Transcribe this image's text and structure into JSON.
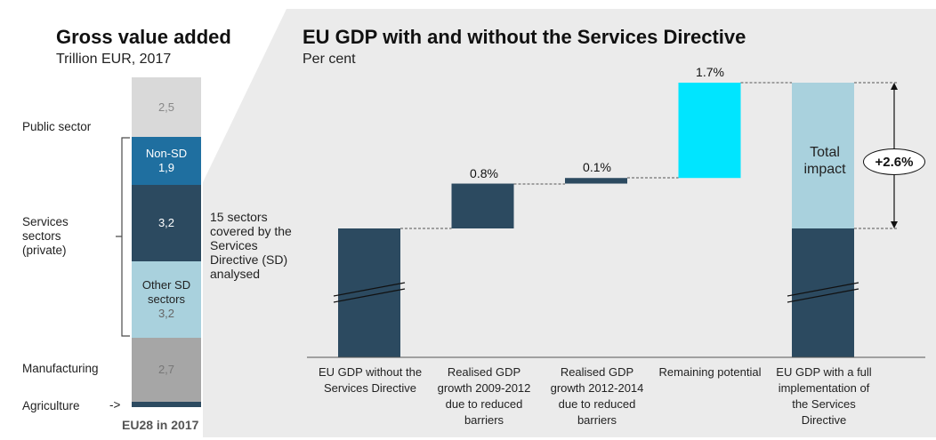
{
  "left_panel": {
    "title": "Gross value added",
    "subtitle": "Trillion EUR, 2017",
    "footer": "EU28 in 2017",
    "labels": {
      "public": "Public sector",
      "services": "Services sectors (private)",
      "manufacturing": "Manufacturing",
      "agriculture": "Agriculture",
      "agriculture_arrow": "->"
    },
    "bracket_note": "15 sectors covered by the Services Directive (SD) analysed",
    "colors": {
      "public": "#d9d9d9",
      "non_sd": "#1f6fa0",
      "sd_covered": "#2c4a60",
      "other_sd": "#a9d1dd",
      "manufacturing": "#a6a6a6",
      "agriculture": "#2c4a60",
      "bracket": "#4a4a4a"
    }
  },
  "right_panel": {
    "title": "EU GDP with and without the Services Directive",
    "subtitle": "Per cent",
    "impact_label": "Total impact",
    "impact_badge": "+2.6%",
    "colors": {
      "panel_bg": "#ebebeb",
      "dark": "#2c4a60",
      "cyan": "#00e5ff",
      "light_blue": "#a9d1dd"
    }
  },
  "chart_data": [
    {
      "type": "bar",
      "stacked": true,
      "title": "Gross value added",
      "subtitle": "Trillion EUR, 2017",
      "categories": [
        "EU28 in 2017"
      ],
      "series": [
        {
          "name": "Agriculture",
          "value_label": "",
          "values": [
            0.1
          ]
        },
        {
          "name": "Manufacturing",
          "value_label": "2,7",
          "values": [
            2.7
          ]
        },
        {
          "name": "Other SD sectors",
          "value_label": "3,2",
          "values": [
            3.2
          ]
        },
        {
          "name": "",
          "value_label": "3,2",
          "values": [
            3.2
          ]
        },
        {
          "name": "Non-SD",
          "value_label": "1,9",
          "values": [
            1.9
          ]
        },
        {
          "name": "Public sector",
          "value_label": "2,5",
          "values": [
            2.5
          ]
        }
      ]
    },
    {
      "type": "bar",
      "waterfall": true,
      "title": "EU GDP with and without the Services Directive",
      "subtitle": "Per cent",
      "axis_break": true,
      "categories": [
        "EU GDP without the Services Directive",
        "Realised GDP growth 2009-2012 due to reduced barriers",
        "Realised GDP growth 2012-2014 due to reduced barriers",
        "Remaining potential",
        "EU GDP with a full implementation of the Services Directive"
      ],
      "values": [
        null,
        0.8,
        0.1,
        1.7,
        null
      ],
      "value_labels": [
        "",
        "0.8%",
        "0.1%",
        "1.7%",
        ""
      ],
      "total_increase": 2.6,
      "total_increase_label": "+2.6%"
    }
  ]
}
